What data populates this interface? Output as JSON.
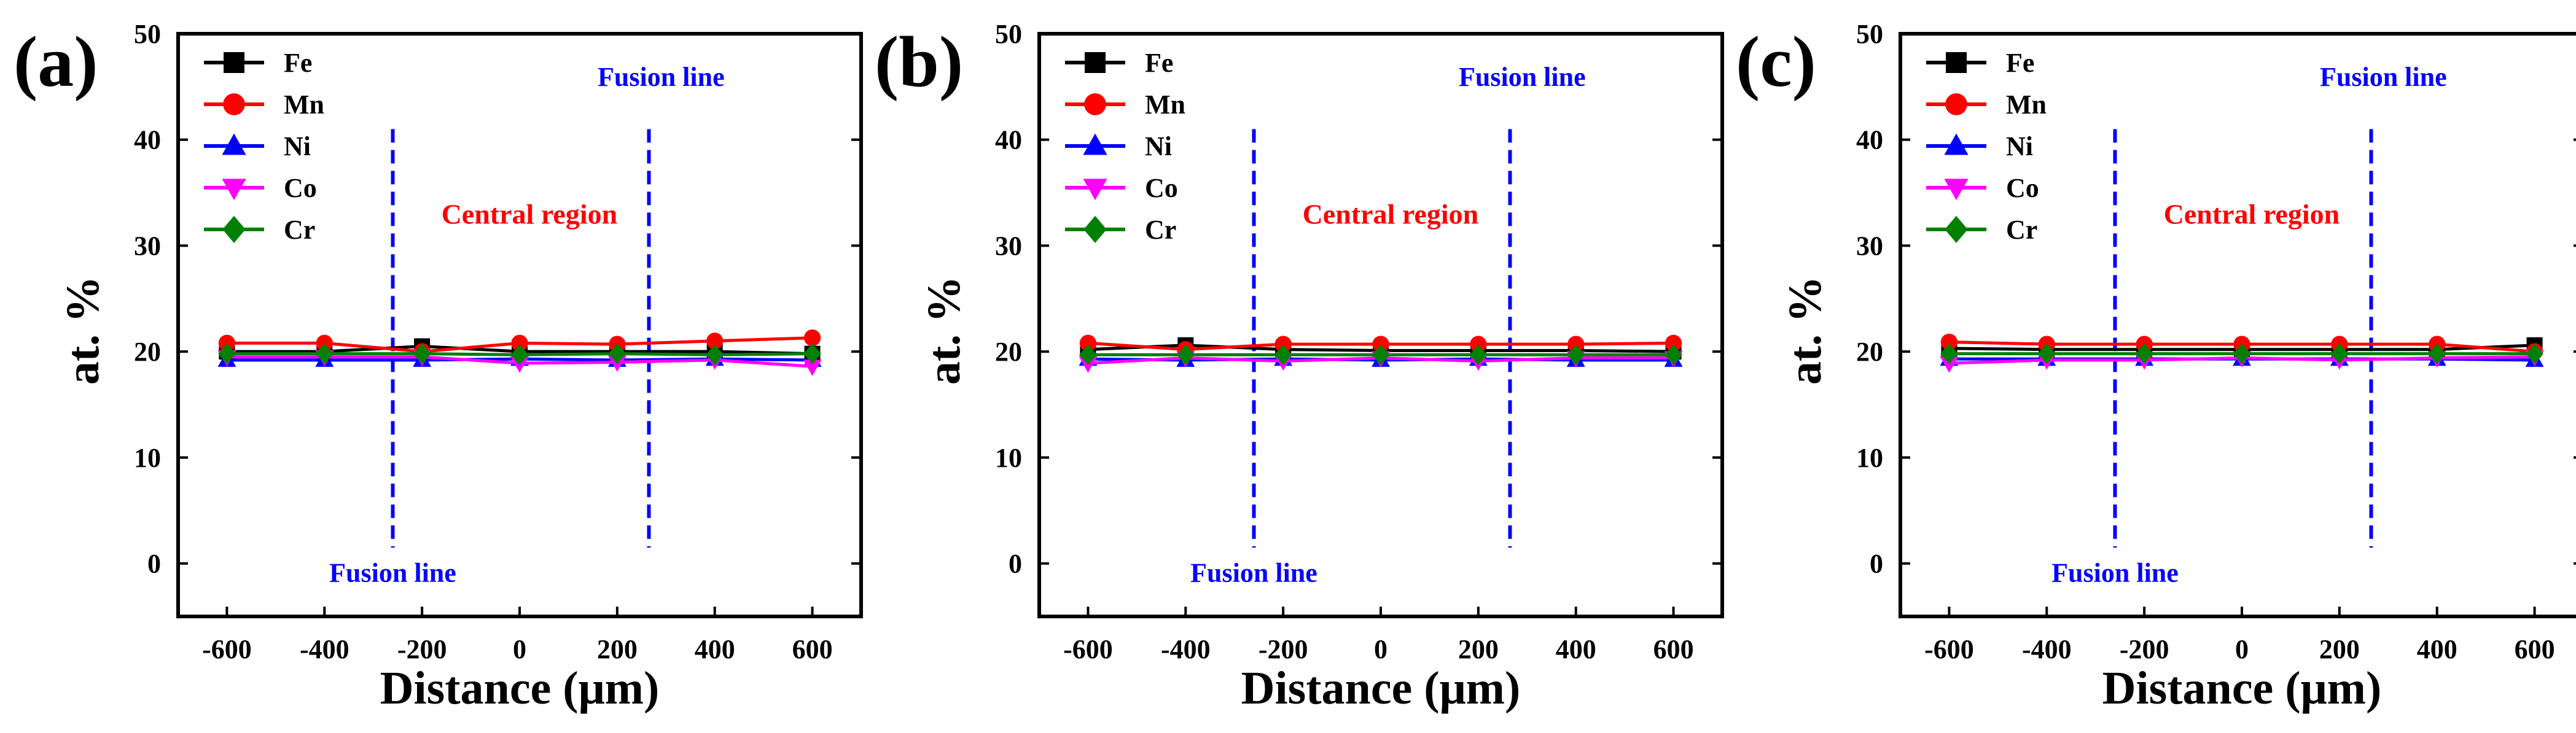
{
  "chart_data": [
    {
      "type": "line",
      "panel_label": "(a)",
      "xlabel": "Distance (μm)",
      "ylabel": "at. %",
      "xlim": [
        -700,
        700
      ],
      "ylim": [
        -5,
        50
      ],
      "xticks": [
        -600,
        -400,
        -200,
        0,
        200,
        400,
        600
      ],
      "yticks": [
        0,
        10,
        20,
        30,
        40,
        50
      ],
      "x": [
        -600,
        -400,
        -200,
        0,
        200,
        400,
        600
      ],
      "series": [
        {
          "name": "Fe",
          "color": "#000000",
          "marker": "square",
          "values": [
            20.0,
            20.0,
            20.5,
            20.0,
            20.0,
            20.0,
            19.8
          ]
        },
        {
          "name": "Mn",
          "color": "#ff0000",
          "marker": "circle",
          "values": [
            20.8,
            20.8,
            20.0,
            20.8,
            20.7,
            21.0,
            21.3
          ]
        },
        {
          "name": "Ni",
          "color": "#0000ff",
          "marker": "triangle-up",
          "values": [
            19.2,
            19.2,
            19.2,
            19.3,
            19.2,
            19.3,
            19.2
          ]
        },
        {
          "name": "Co",
          "color": "#ff00ff",
          "marker": "triangle-down",
          "values": [
            19.5,
            19.5,
            19.5,
            18.9,
            19.0,
            19.2,
            18.6
          ]
        },
        {
          "name": "Cr",
          "color": "#008000",
          "marker": "diamond",
          "values": [
            19.8,
            19.8,
            19.8,
            19.7,
            19.8,
            19.7,
            19.8
          ]
        }
      ],
      "fusion_lines_x": [
        -260,
        265
      ],
      "annotations": {
        "fusion_top": "Fusion line",
        "central": "Central region",
        "fusion_bottom": "Fusion line"
      },
      "legend_position": "top-left"
    },
    {
      "type": "line",
      "panel_label": "(b)",
      "xlabel": "Distance (μm)",
      "ylabel": "at. %",
      "xlim": [
        -700,
        700
      ],
      "ylim": [
        -5,
        50
      ],
      "xticks": [
        -600,
        -400,
        -200,
        0,
        200,
        400,
        600
      ],
      "yticks": [
        0,
        10,
        20,
        30,
        40,
        50
      ],
      "x": [
        -600,
        -400,
        -200,
        0,
        200,
        400,
        600
      ],
      "series": [
        {
          "name": "Fe",
          "color": "#000000",
          "marker": "square",
          "values": [
            20.2,
            20.6,
            20.2,
            20.1,
            20.1,
            20.1,
            20.0
          ]
        },
        {
          "name": "Mn",
          "color": "#ff0000",
          "marker": "circle",
          "values": [
            20.8,
            20.2,
            20.7,
            20.7,
            20.7,
            20.7,
            20.8
          ]
        },
        {
          "name": "Ni",
          "color": "#0000ff",
          "marker": "triangle-up",
          "values": [
            19.3,
            19.2,
            19.3,
            19.2,
            19.3,
            19.2,
            19.2
          ]
        },
        {
          "name": "Co",
          "color": "#ff00ff",
          "marker": "triangle-down",
          "values": [
            18.9,
            19.4,
            19.1,
            19.4,
            19.1,
            19.4,
            19.4
          ]
        },
        {
          "name": "Cr",
          "color": "#008000",
          "marker": "diamond",
          "values": [
            19.7,
            19.7,
            19.7,
            19.7,
            19.7,
            19.7,
            19.7
          ]
        }
      ],
      "fusion_lines_x": [
        -260,
        265
      ],
      "annotations": {
        "fusion_top": "Fusion line",
        "central": "Central region",
        "fusion_bottom": "Fusion line"
      },
      "legend_position": "top-left"
    },
    {
      "type": "line",
      "panel_label": "(c)",
      "xlabel": "Distance (μm)",
      "ylabel": "at. %",
      "xlim": [
        -700,
        700
      ],
      "ylim": [
        -5,
        50
      ],
      "xticks": [
        -600,
        -400,
        -200,
        0,
        200,
        400,
        600
      ],
      "yticks": [
        0,
        10,
        20,
        30,
        40,
        50
      ],
      "x": [
        -600,
        -400,
        -200,
        0,
        200,
        400,
        600
      ],
      "series": [
        {
          "name": "Fe",
          "color": "#000000",
          "marker": "square",
          "values": [
            20.3,
            20.2,
            20.2,
            20.2,
            20.2,
            20.2,
            20.6
          ]
        },
        {
          "name": "Mn",
          "color": "#ff0000",
          "marker": "circle",
          "values": [
            20.9,
            20.7,
            20.7,
            20.7,
            20.7,
            20.7,
            20.0
          ]
        },
        {
          "name": "Ni",
          "color": "#0000ff",
          "marker": "triangle-up",
          "values": [
            19.3,
            19.3,
            19.3,
            19.3,
            19.3,
            19.3,
            19.2
          ]
        },
        {
          "name": "Co",
          "color": "#ff00ff",
          "marker": "triangle-down",
          "values": [
            18.9,
            19.2,
            19.2,
            19.4,
            19.2,
            19.4,
            19.5
          ]
        },
        {
          "name": "Cr",
          "color": "#008000",
          "marker": "diamond",
          "values": [
            19.8,
            19.8,
            19.8,
            19.8,
            19.8,
            19.8,
            19.8
          ]
        }
      ],
      "fusion_lines_x": [
        -260,
        265
      ],
      "annotations": {
        "fusion_top": "Fusion line",
        "central": "Central region",
        "fusion_bottom": "Fusion line"
      },
      "legend_position": "top-left"
    }
  ],
  "style": {
    "fusion_color": "#0000ff",
    "central_color": "#ff0000",
    "axis_color": "#000000"
  }
}
